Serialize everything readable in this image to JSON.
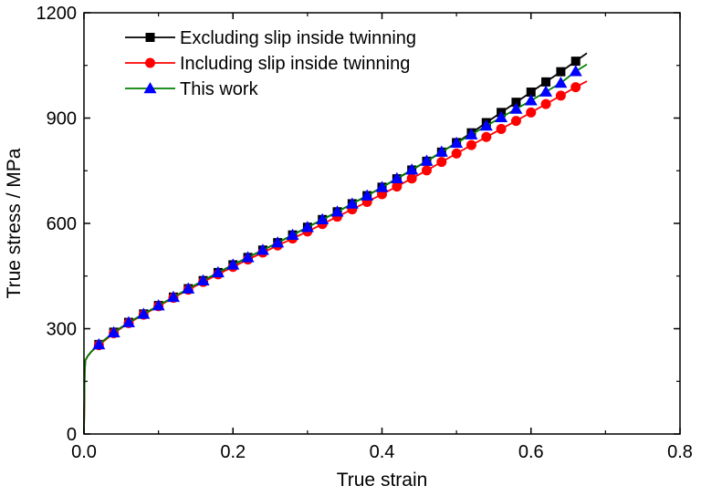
{
  "chart_data": {
    "type": "line",
    "xlabel": "True strain",
    "ylabel": "True stress / MPa",
    "xlim": [
      0.0,
      0.8
    ],
    "ylim": [
      0,
      1200
    ],
    "xticks": [
      "0.0",
      "0.2",
      "0.4",
      "0.6",
      "0.8"
    ],
    "yticks": [
      "0",
      "300",
      "600",
      "900",
      "1200"
    ],
    "grid": false,
    "legend_position": "top-left",
    "series": [
      {
        "name": "Excluding slip inside twinning",
        "color": "#000000",
        "marker": "square",
        "x": [
          0.0,
          0.0005,
          0.001,
          0.002,
          0.005,
          0.01,
          0.02,
          0.04,
          0.06,
          0.08,
          0.1,
          0.12,
          0.14,
          0.16,
          0.18,
          0.2,
          0.22,
          0.24,
          0.26,
          0.28,
          0.3,
          0.32,
          0.34,
          0.36,
          0.38,
          0.4,
          0.42,
          0.44,
          0.46,
          0.48,
          0.5,
          0.52,
          0.54,
          0.56,
          0.58,
          0.6,
          0.62,
          0.64,
          0.66,
          0.675
        ],
        "y": [
          0,
          100,
          180,
          210,
          222,
          235,
          255,
          290,
          318,
          342,
          366,
          390,
          414,
          437,
          460,
          482,
          503,
          524,
          545,
          567,
          589,
          611,
          633,
          656,
          679,
          703,
          727,
          752,
          777,
          803,
          830,
          858,
          887,
          916,
          945,
          974,
          1003,
          1032,
          1062,
          1085
        ],
        "marker_x": [
          0.02,
          0.04,
          0.06,
          0.08,
          0.1,
          0.12,
          0.14,
          0.16,
          0.18,
          0.2,
          0.22,
          0.24,
          0.26,
          0.28,
          0.3,
          0.32,
          0.34,
          0.36,
          0.38,
          0.4,
          0.42,
          0.44,
          0.46,
          0.48,
          0.5,
          0.52,
          0.54,
          0.56,
          0.58,
          0.6,
          0.62,
          0.64,
          0.66
        ]
      },
      {
        "name": "Including slip inside twinning",
        "color": "#ff0000",
        "marker": "circle",
        "x": [
          0.0,
          0.0005,
          0.001,
          0.002,
          0.005,
          0.01,
          0.02,
          0.04,
          0.06,
          0.08,
          0.1,
          0.12,
          0.14,
          0.16,
          0.18,
          0.2,
          0.22,
          0.24,
          0.26,
          0.28,
          0.3,
          0.32,
          0.34,
          0.36,
          0.38,
          0.4,
          0.42,
          0.44,
          0.46,
          0.48,
          0.5,
          0.52,
          0.54,
          0.56,
          0.58,
          0.6,
          0.62,
          0.64,
          0.66,
          0.675
        ],
        "y": [
          0,
          100,
          180,
          210,
          222,
          235,
          253,
          287,
          316,
          340,
          364,
          388,
          411,
          433,
          455,
          476,
          497,
          517,
          537,
          557,
          577,
          598,
          619,
          640,
          661,
          683,
          705,
          728,
          751,
          775,
          799,
          823,
          846,
          869,
          892,
          916,
          940,
          964,
          988,
          1005
        ],
        "marker_x": [
          0.02,
          0.04,
          0.06,
          0.08,
          0.1,
          0.12,
          0.14,
          0.16,
          0.18,
          0.2,
          0.22,
          0.24,
          0.26,
          0.28,
          0.3,
          0.32,
          0.34,
          0.36,
          0.38,
          0.4,
          0.42,
          0.44,
          0.46,
          0.48,
          0.5,
          0.52,
          0.54,
          0.56,
          0.58,
          0.6,
          0.62,
          0.64,
          0.66
        ]
      },
      {
        "name": "This work",
        "color": "#008000",
        "marker_color": "#0000ff",
        "marker": "triangle",
        "x": [
          0.0,
          0.0005,
          0.001,
          0.002,
          0.005,
          0.01,
          0.02,
          0.04,
          0.06,
          0.08,
          0.1,
          0.12,
          0.14,
          0.16,
          0.18,
          0.2,
          0.22,
          0.24,
          0.26,
          0.28,
          0.3,
          0.32,
          0.34,
          0.36,
          0.38,
          0.4,
          0.42,
          0.44,
          0.46,
          0.48,
          0.5,
          0.52,
          0.54,
          0.56,
          0.58,
          0.6,
          0.62,
          0.64,
          0.66,
          0.675
        ],
        "y": [
          0,
          100,
          180,
          210,
          222,
          235,
          255,
          289,
          318,
          342,
          366,
          390,
          414,
          437,
          460,
          482,
          503,
          524,
          545,
          567,
          589,
          611,
          633,
          656,
          679,
          703,
          728,
          753,
          778,
          804,
          829,
          853,
          878,
          902,
          926,
          950,
          975,
          1000,
          1033,
          1053
        ],
        "marker_x": [
          0.02,
          0.04,
          0.06,
          0.08,
          0.1,
          0.12,
          0.14,
          0.16,
          0.18,
          0.2,
          0.22,
          0.24,
          0.26,
          0.28,
          0.3,
          0.32,
          0.34,
          0.36,
          0.38,
          0.4,
          0.42,
          0.44,
          0.46,
          0.48,
          0.5,
          0.52,
          0.54,
          0.56,
          0.58,
          0.6,
          0.62,
          0.64,
          0.66
        ]
      }
    ]
  }
}
